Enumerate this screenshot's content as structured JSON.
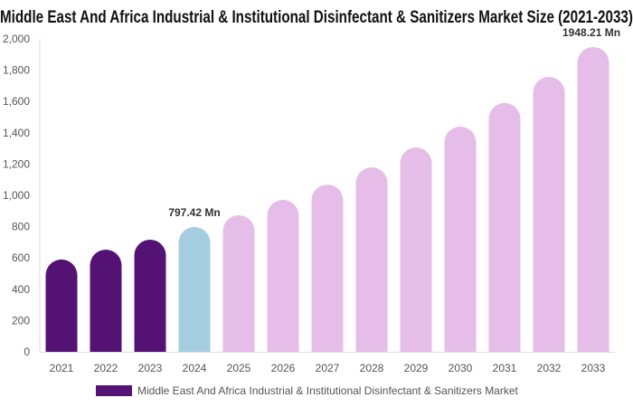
{
  "chart_data": {
    "type": "bar",
    "title": "Middle East And Africa Industrial & Institutional Disinfectant & Sanitizers Market Size (2021-2033)",
    "categories": [
      "2021",
      "2022",
      "2023",
      "2024",
      "2025",
      "2026",
      "2027",
      "2028",
      "2029",
      "2030",
      "2031",
      "2032",
      "2033"
    ],
    "values": [
      590,
      653,
      717,
      797.42,
      873,
      971,
      1069,
      1179,
      1306,
      1439,
      1590,
      1757,
      1948.21
    ],
    "data_labels": {
      "3": "797.42 Mn",
      "12": "1948.21 Mn"
    },
    "ylim": [
      0,
      2000
    ],
    "yticks": [
      "0",
      "200",
      "400",
      "600",
      "800",
      "1,000",
      "1,200",
      "1,400",
      "1,600",
      "1,800",
      "2,000"
    ],
    "grid": false,
    "legend": {
      "position": "bottom",
      "label": "Middle East And Africa Industrial & Institutional Disinfectant & Sanitizers Market"
    },
    "colors": {
      "historical": "#541274",
      "base_year": "#a5cde0",
      "forecast": "#e6bde9"
    }
  }
}
